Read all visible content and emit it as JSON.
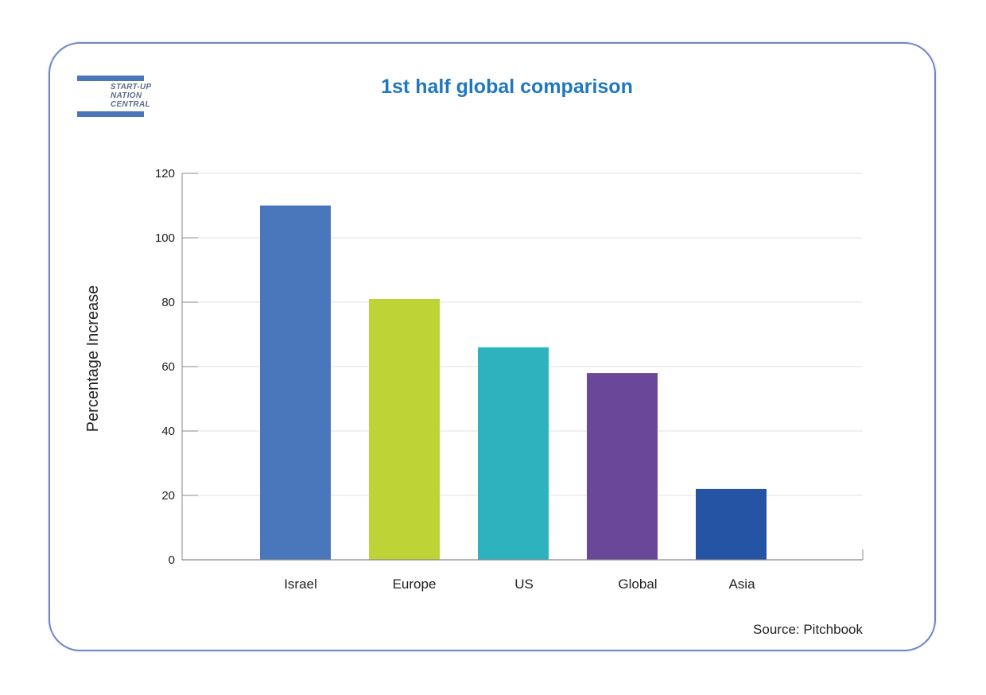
{
  "logo": {
    "lines": [
      "START-UP",
      "NATION",
      "CENTRAL"
    ]
  },
  "colors": {
    "card_border": "#6f86c6",
    "title": "#1f78be",
    "logo": "#4a76bb"
  },
  "chart_data": {
    "type": "bar",
    "title": "1st half global comparison",
    "xlabel": "",
    "ylabel": "Percentage Increase",
    "categories": [
      "Israel",
      "Europe",
      "US",
      "Global",
      "Asia"
    ],
    "values": [
      110,
      81,
      66,
      58,
      22
    ],
    "colors": [
      "#4a76bb",
      "#bdd336",
      "#2db3bd",
      "#6a4799",
      "#2654a5"
    ],
    "ylim": [
      0,
      120
    ],
    "yticks": [
      0,
      20,
      40,
      60,
      80,
      100,
      120
    ],
    "grid": true,
    "legend": "none"
  },
  "source": "Source: Pitchbook"
}
